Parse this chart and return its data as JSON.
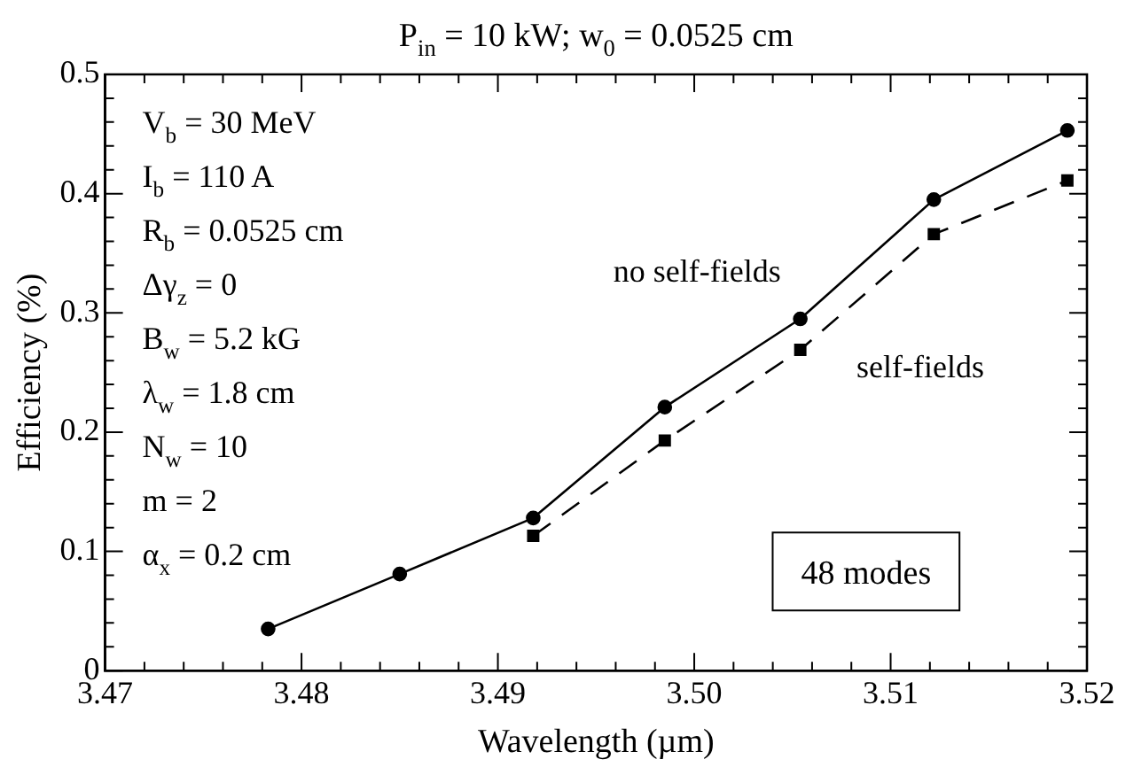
{
  "chart_data": {
    "type": "line",
    "title": "P$_{in}$ = 10 kW; w$_{0}$ = 0.0525 cm",
    "xlabel": "Wavelength (µm)",
    "ylabel": "Efficiency (%)",
    "xlim": [
      3.47,
      3.52
    ],
    "xticks": [
      {
        "value": 3.47,
        "label": "3.47"
      },
      {
        "value": 3.48,
        "label": "3.48"
      },
      {
        "value": 3.49,
        "label": "3.49"
      },
      {
        "value": 3.5,
        "label": "3.50"
      },
      {
        "value": 3.51,
        "label": "3.51"
      },
      {
        "value": 3.52,
        "label": "3.52"
      }
    ],
    "ylim": [
      0,
      0.5
    ],
    "yticks": [
      0,
      0.1,
      0.2,
      0.3,
      0.4,
      0.5
    ],
    "grid": false,
    "legend": false,
    "marker": "circle",
    "series": [
      {
        "name": "no self-fields",
        "color": "#000000",
        "line_style": "solid",
        "x": [
          3.4783,
          3.485,
          3.4918,
          3.4985,
          3.5054,
          3.5122,
          3.519
        ],
        "values": [
          0.035,
          0.081,
          0.128,
          0.221,
          0.295,
          0.395,
          0.453
        ]
      },
      {
        "name": "self-fields",
        "color": "#000000",
        "marker": "square",
        "line_style": "dashed",
        "x": [
          3.4918,
          3.4985,
          3.5054,
          3.5122,
          3.519
        ],
        "values": [
          0.113,
          0.193,
          0.269,
          0.366,
          0.411
        ]
      }
    ],
    "annotations": [
      "V$_{b}$ = 30 MeV",
      "I$_{b}$ = 110 A",
      "R$_{b}$ = 0.0525 cm",
      "Δγ$_{z}$ = 0",
      "B$_{w}$ = 5.2 kG",
      "λ$_{w}$ = 1.8 cm",
      "N$_{w}$ = 10",
      "m = 2",
      "α$_{x}$ = 0.2 cm",
      "48 modes"
    ]
  }
}
